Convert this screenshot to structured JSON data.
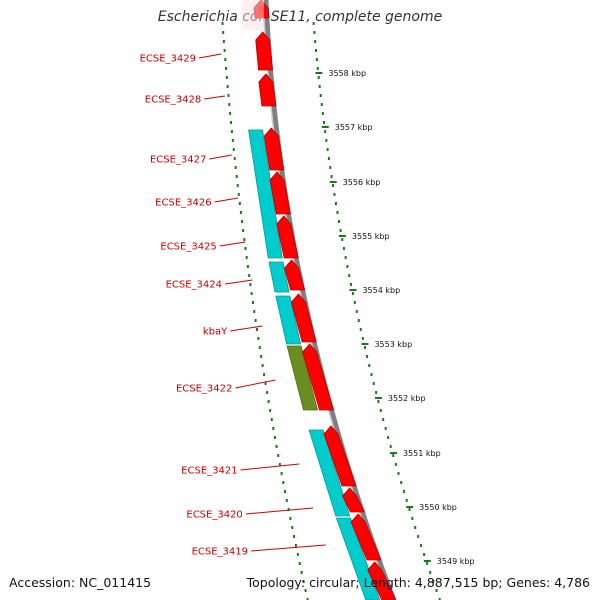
{
  "title": "Escherichia coli SE11, complete genome",
  "accession_text": "Accession: NC_011415",
  "summary_text": "Topology: circular; Length: 4,887,515 bp; Genes: 4,786",
  "colors": {
    "cds": "#ff0000",
    "gene_cyan": "#00cccc",
    "gene_olive": "#6b8e23",
    "backbone": "#808080",
    "tick": "#1a7a1a",
    "label": "#cc0000"
  },
  "gene_labels": [
    "ECSE_3429",
    "ECSE_3428",
    "ECSE_3427",
    "ECSE_3426",
    "ECSE_3425",
    "ECSE_3424",
    "kbaY",
    "ECSE_3422",
    "ECSE_3421",
    "ECSE_3420",
    "ECSE_3419"
  ],
  "tick_labels": [
    "3558 kbp",
    "3557 kbp",
    "3556 kbp",
    "3555 kbp",
    "3554 kbp",
    "3553 kbp",
    "3552 kbp",
    "3551 kbp",
    "3550 kbp",
    "3549 kbp"
  ]
}
